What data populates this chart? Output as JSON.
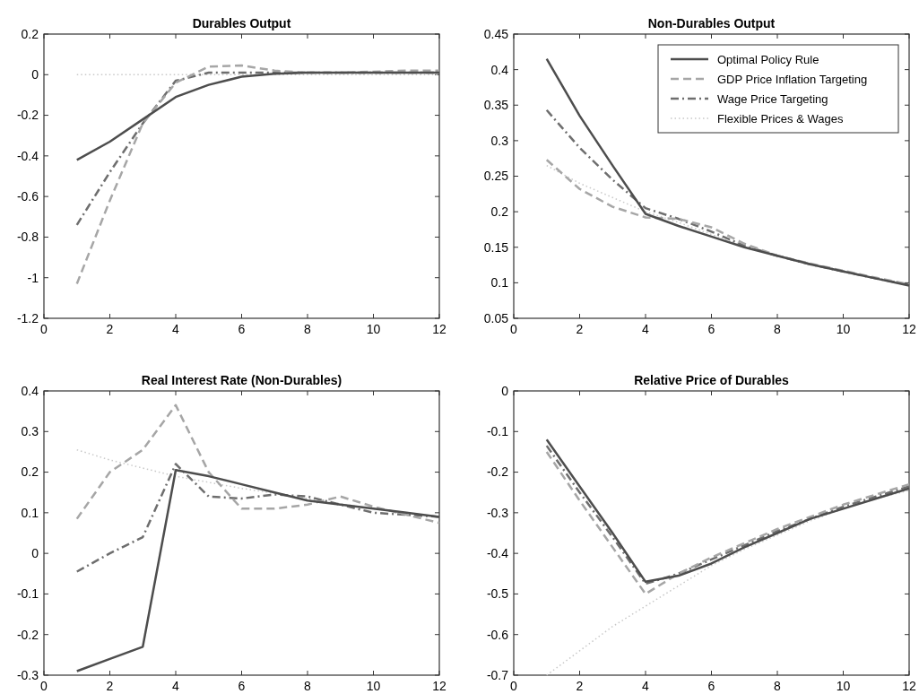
{
  "chart_data": [
    {
      "type": "line",
      "title": "Durables Output",
      "x": [
        1,
        2,
        3,
        4,
        5,
        6,
        7,
        8,
        9,
        10,
        11,
        12
      ],
      "xlim": [
        0,
        12
      ],
      "xticks": [
        0,
        2,
        4,
        6,
        8,
        10,
        12
      ],
      "ylim": [
        -1.2,
        0.2
      ],
      "yticks": [
        -1.2,
        -1,
        -0.8,
        -0.6,
        -0.4,
        -0.2,
        0,
        0.2
      ],
      "legend": false,
      "series": [
        {
          "color": "#4d4d4d",
          "line_style": "solid",
          "values": [
            -0.42,
            -0.33,
            -0.22,
            -0.11,
            -0.05,
            -0.01,
            0.005,
            0.01,
            0.01,
            0.01,
            0.01,
            0.01
          ]
        },
        {
          "color": "#a6a6a6",
          "line_style": "dashed",
          "values": [
            -1.03,
            -0.62,
            -0.24,
            -0.04,
            0.04,
            0.045,
            0.02,
            0.01,
            0.01,
            0.015,
            0.02,
            0.02
          ]
        },
        {
          "color": "#6e6e6e",
          "line_style": "dashdot",
          "values": [
            -0.74,
            -0.48,
            -0.24,
            -0.03,
            0.01,
            0.01,
            0.01,
            0.01,
            0.01,
            0.01,
            0.01,
            0.01
          ]
        },
        {
          "color": "#c8c8c8",
          "line_style": "dotted",
          "values": [
            0,
            0,
            0,
            0,
            0,
            0,
            0,
            0,
            0,
            0,
            0,
            0
          ]
        }
      ]
    },
    {
      "type": "line",
      "title": "Non-Durables Output",
      "x": [
        1,
        2,
        3,
        4,
        5,
        6,
        7,
        8,
        9,
        10,
        11,
        12
      ],
      "xlim": [
        0,
        12
      ],
      "xticks": [
        0,
        2,
        4,
        6,
        8,
        10,
        12
      ],
      "ylim": [
        0.05,
        0.45
      ],
      "yticks": [
        0.05,
        0.1,
        0.15,
        0.2,
        0.25,
        0.3,
        0.35,
        0.4,
        0.45
      ],
      "legend": "top right",
      "series": [
        {
          "name": "Optimal Policy Rule",
          "color": "#4d4d4d",
          "line_style": "solid",
          "values": [
            0.415,
            0.335,
            0.265,
            0.197,
            0.18,
            0.165,
            0.15,
            0.138,
            0.126,
            0.116,
            0.106,
            0.096
          ]
        },
        {
          "name": "GDP Price Inflation Targeting",
          "color": "#a6a6a6",
          "line_style": "dashed",
          "values": [
            0.273,
            0.232,
            0.207,
            0.192,
            0.19,
            0.178,
            0.155,
            0.138,
            0.127,
            0.117,
            0.107,
            0.098
          ]
        },
        {
          "name": "Wage Price Targeting",
          "color": "#6e6e6e",
          "line_style": "dashdot",
          "values": [
            0.343,
            0.29,
            0.245,
            0.205,
            0.19,
            0.172,
            0.152,
            0.138,
            0.126,
            0.116,
            0.106,
            0.097
          ]
        },
        {
          "name": "Flexible Prices & Wages",
          "color": "#c8c8c8",
          "line_style": "dotted",
          "values": [
            0.265,
            0.24,
            0.22,
            0.2,
            0.185,
            0.168,
            0.152,
            0.138,
            0.126,
            0.116,
            0.106,
            0.097
          ]
        }
      ]
    },
    {
      "type": "line",
      "title": "Real Interest Rate (Non-Durables)",
      "x": [
        1,
        2,
        3,
        4,
        5,
        6,
        7,
        8,
        9,
        10,
        11,
        12
      ],
      "xlim": [
        0,
        12
      ],
      "xticks": [
        0,
        2,
        4,
        6,
        8,
        10,
        12
      ],
      "ylim": [
        -0.3,
        0.4
      ],
      "yticks": [
        -0.3,
        -0.2,
        -0.1,
        0,
        0.1,
        0.2,
        0.3,
        0.4
      ],
      "legend": false,
      "series": [
        {
          "color": "#4d4d4d",
          "line_style": "solid",
          "values": [
            -0.29,
            -0.26,
            -0.23,
            0.205,
            0.19,
            0.17,
            0.15,
            0.13,
            0.12,
            0.11,
            0.1,
            0.09
          ]
        },
        {
          "color": "#a6a6a6",
          "line_style": "dashed",
          "values": [
            0.085,
            0.2,
            0.255,
            0.365,
            0.2,
            0.11,
            0.11,
            0.12,
            0.14,
            0.115,
            0.095,
            0.075
          ]
        },
        {
          "color": "#6e6e6e",
          "line_style": "dashdot",
          "values": [
            -0.045,
            0,
            0.04,
            0.22,
            0.14,
            0.135,
            0.145,
            0.14,
            0.12,
            0.1,
            0.095,
            0.09
          ]
        },
        {
          "color": "#c8c8c8",
          "line_style": "dotted",
          "values": [
            0.255,
            0.23,
            0.21,
            0.19,
            0.175,
            0.16,
            0.148,
            0.135,
            0.122,
            0.11,
            0.1,
            0.09
          ]
        }
      ]
    },
    {
      "type": "line",
      "title": "Relative Price of Durables",
      "x": [
        1,
        2,
        3,
        4,
        5,
        6,
        7,
        8,
        9,
        10,
        11,
        12
      ],
      "xlim": [
        0,
        12
      ],
      "xticks": [
        0,
        2,
        4,
        6,
        8,
        10,
        12
      ],
      "ylim": [
        -0.7,
        0
      ],
      "yticks": [
        -0.7,
        -0.6,
        -0.5,
        -0.4,
        -0.3,
        -0.2,
        -0.1,
        0
      ],
      "legend": false,
      "series": [
        {
          "color": "#4d4d4d",
          "line_style": "solid",
          "values": [
            -0.12,
            -0.235,
            -0.35,
            -0.47,
            -0.455,
            -0.425,
            -0.385,
            -0.35,
            -0.315,
            -0.29,
            -0.265,
            -0.24
          ]
        },
        {
          "color": "#a6a6a6",
          "line_style": "dashed",
          "values": [
            -0.15,
            -0.27,
            -0.385,
            -0.5,
            -0.45,
            -0.41,
            -0.375,
            -0.34,
            -0.31,
            -0.28,
            -0.255,
            -0.23
          ]
        },
        {
          "color": "#6e6e6e",
          "line_style": "dashdot",
          "values": [
            -0.135,
            -0.25,
            -0.36,
            -0.475,
            -0.45,
            -0.415,
            -0.38,
            -0.345,
            -0.315,
            -0.285,
            -0.26,
            -0.235
          ]
        },
        {
          "color": "#c8c8c8",
          "line_style": "dotted",
          "values": [
            -0.7,
            -0.64,
            -0.58,
            -0.53,
            -0.48,
            -0.43,
            -0.39,
            -0.355,
            -0.32,
            -0.29,
            -0.265,
            -0.245
          ]
        }
      ]
    }
  ]
}
